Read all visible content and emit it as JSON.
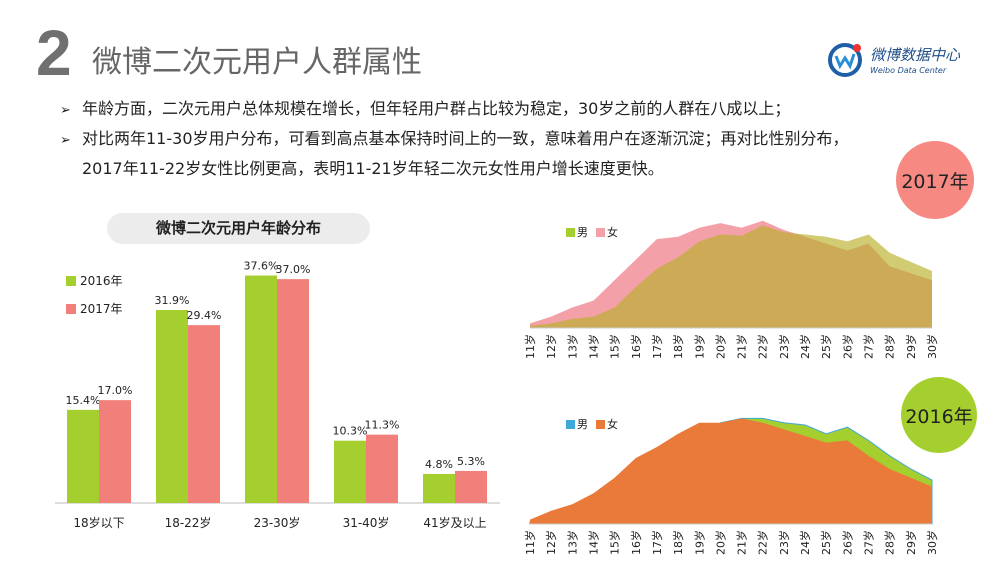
{
  "header": {
    "section_number": "2",
    "title": "微博二次元用户人群属性",
    "logo": {
      "name": "微博数据中心",
      "subtitle": "Weibo Data Center"
    }
  },
  "bullets": [
    {
      "mark": "➢",
      "text": "年龄方面，二次元用户总体规模在增长，但年轻用户群占比较为稳定，30岁之前的人群在八成以上；"
    },
    {
      "mark": "➢",
      "text": "对比两年11-30岁用户分布，可看到高点基本保持时间上的一致，意味着用户在逐渐沉淀；再对比性别分布，",
      "text2": "2017年11-22岁女性比例更高，表明11-21岁年轻二次元女性用户增长速度更快。"
    }
  ],
  "year_badges": {
    "y2017": "2017年",
    "y2016": "2016年"
  },
  "colors": {
    "green": "#a5cf2f",
    "salmon": "#f08079",
    "pink": "#f4a0a8",
    "orange": "#ea7a3a",
    "blue": "#3fa8d8",
    "circle2017": "#f78983",
    "circle2016": "#a5cf2f"
  },
  "chart_data": [
    {
      "type": "bar",
      "title": "微博二次元用户年龄分布",
      "categories": [
        "18岁以下",
        "18-22岁",
        "23-30岁",
        "31-40岁",
        "41岁及以上"
      ],
      "series": [
        {
          "name": "2016年",
          "values": [
            15.4,
            31.9,
            37.6,
            10.3,
            4.8
          ],
          "labels": [
            "15.4%",
            "31.9%",
            "37.6%",
            "10.3%",
            "4.8%"
          ]
        },
        {
          "name": "2017年",
          "values": [
            17.0,
            29.4,
            37.0,
            11.3,
            5.3
          ],
          "labels": [
            "17.0%",
            "29.4%",
            "37.0%",
            "11.3%",
            "5.3%"
          ]
        }
      ],
      "ylim": [
        0,
        40
      ],
      "legend": "top-left"
    },
    {
      "type": "area",
      "year": "2017年",
      "categories": [
        "11岁",
        "12岁",
        "13岁",
        "14岁",
        "15岁",
        "16岁",
        "17岁",
        "18岁",
        "19岁",
        "20岁",
        "21岁",
        "22岁",
        "23岁",
        "24岁",
        "25岁",
        "26岁",
        "27岁",
        "28岁",
        "29岁",
        "30岁"
      ],
      "series": [
        {
          "name": "男",
          "values": [
            2,
            4,
            8,
            10,
            18,
            36,
            52,
            62,
            76,
            82,
            81,
            90,
            84,
            82,
            80,
            76,
            82,
            66,
            58,
            50
          ]
        },
        {
          "name": "女",
          "values": [
            4,
            10,
            18,
            24,
            42,
            60,
            78,
            80,
            88,
            92,
            88,
            94,
            86,
            80,
            74,
            68,
            74,
            54,
            48,
            42
          ]
        }
      ],
      "ylim": [
        0,
        100
      ],
      "legend": "top-left"
    },
    {
      "type": "area",
      "year": "2016年",
      "categories": [
        "11岁",
        "12岁",
        "13岁",
        "14岁",
        "15岁",
        "16岁",
        "17岁",
        "18岁",
        "19岁",
        "20岁",
        "21岁",
        "22岁",
        "23岁",
        "24岁",
        "25岁",
        "26岁",
        "27岁",
        "28岁",
        "29岁",
        "30岁"
      ],
      "series": [
        {
          "name": "男",
          "values": [
            2,
            6,
            8,
            14,
            26,
            42,
            56,
            70,
            82,
            92,
            96,
            96,
            92,
            90,
            82,
            88,
            76,
            62,
            50,
            40
          ]
        },
        {
          "name": "女",
          "values": [
            4,
            12,
            18,
            28,
            42,
            60,
            70,
            82,
            92,
            92,
            96,
            92,
            86,
            80,
            74,
            76,
            62,
            50,
            42,
            34
          ]
        }
      ],
      "ylim": [
        0,
        100
      ],
      "legend": "top-left"
    }
  ]
}
